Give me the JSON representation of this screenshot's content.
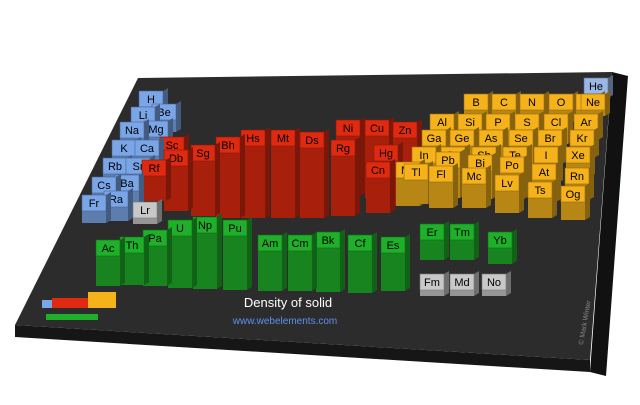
{
  "title": "Density of solid",
  "url": "www.webelements.com",
  "copyright": "© Mark Winter",
  "blocks": [
    {
      "color": "#7aa6e8",
      "elements": [
        "H",
        "Li",
        "Be",
        "Na",
        "Mg",
        "K",
        "Ca",
        "Rb",
        "Sr",
        "Cs",
        "Ba",
        "Fr",
        "Ra"
      ]
    },
    {
      "color": "#9ab8e6",
      "elements": [
        "He"
      ]
    },
    {
      "color": "#e02a10",
      "elements": [
        "Sc",
        "Rf",
        "Db",
        "Sg",
        "Bh",
        "Hs",
        "Mt",
        "Ds",
        "Rg",
        "Ni",
        "Cu",
        "Zn",
        "Hg",
        "Cn"
      ]
    },
    {
      "color": "#f5b21a",
      "elements": [
        "B",
        "C",
        "N",
        "O",
        "F",
        "Ne",
        "Al",
        "Si",
        "P",
        "S",
        "Cl",
        "Ar",
        "Ga",
        "Ge",
        "As",
        "Se",
        "Br",
        "Kr",
        "In",
        "Sn",
        "Sb",
        "Te",
        "I",
        "Xe",
        "Tl",
        "Pb",
        "Bi",
        "Po",
        "At",
        "Rn",
        "Nh",
        "Fl",
        "Mc",
        "Lv",
        "Ts",
        "Og"
      ]
    },
    {
      "color": "#1fb02a",
      "elements": [
        "Ac",
        "Th",
        "Pa",
        "U",
        "Np",
        "Pu",
        "Am",
        "Cm",
        "Bk",
        "Cf",
        "Es",
        "Er",
        "Tm",
        "Yb"
      ]
    },
    {
      "color": "#c8c8c8",
      "elements": [
        "Lr",
        "Fm",
        "Md",
        "No"
      ]
    }
  ]
}
